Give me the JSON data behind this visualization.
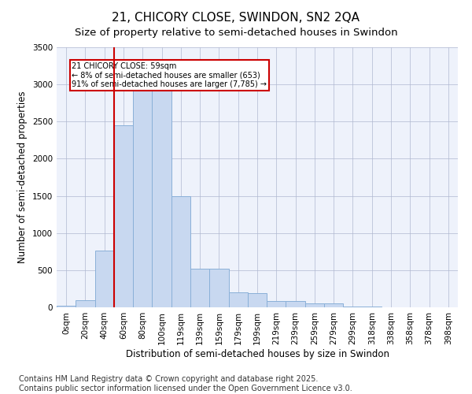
{
  "title": "21, CHICORY CLOSE, SWINDON, SN2 2QA",
  "subtitle": "Size of property relative to semi-detached houses in Swindon",
  "xlabel": "Distribution of semi-detached houses by size in Swindon",
  "ylabel": "Number of semi-detached properties",
  "categories": [
    "0sqm",
    "20sqm",
    "40sqm",
    "60sqm",
    "80sqm",
    "100sqm",
    "119sqm",
    "139sqm",
    "159sqm",
    "179sqm",
    "199sqm",
    "219sqm",
    "239sqm",
    "259sqm",
    "279sqm",
    "299sqm",
    "318sqm",
    "338sqm",
    "358sqm",
    "378sqm",
    "398sqm"
  ],
  "values": [
    25,
    95,
    760,
    2450,
    2950,
    2950,
    1500,
    520,
    520,
    200,
    195,
    80,
    80,
    50,
    50,
    15,
    15,
    5,
    0,
    0,
    0
  ],
  "bar_color": "#c8d8f0",
  "bar_edge_color": "#8ab0d8",
  "vline_color": "#cc0000",
  "vline_pos": 2.5,
  "annotation_title": "21 CHICORY CLOSE: 59sqm",
  "annotation_line1": "← 8% of semi-detached houses are smaller (653)",
  "annotation_line2": "91% of semi-detached houses are larger (7,785) →",
  "footnote1": "Contains HM Land Registry data © Crown copyright and database right 2025.",
  "footnote2": "Contains public sector information licensed under the Open Government Licence v3.0.",
  "bg_color": "#eef2fb",
  "ylim": [
    0,
    3500
  ],
  "yticks": [
    0,
    500,
    1000,
    1500,
    2000,
    2500,
    3000,
    3500
  ],
  "title_fontsize": 11,
  "subtitle_fontsize": 9.5,
  "axis_label_fontsize": 8.5,
  "tick_fontsize": 7.5,
  "footnote_fontsize": 7
}
